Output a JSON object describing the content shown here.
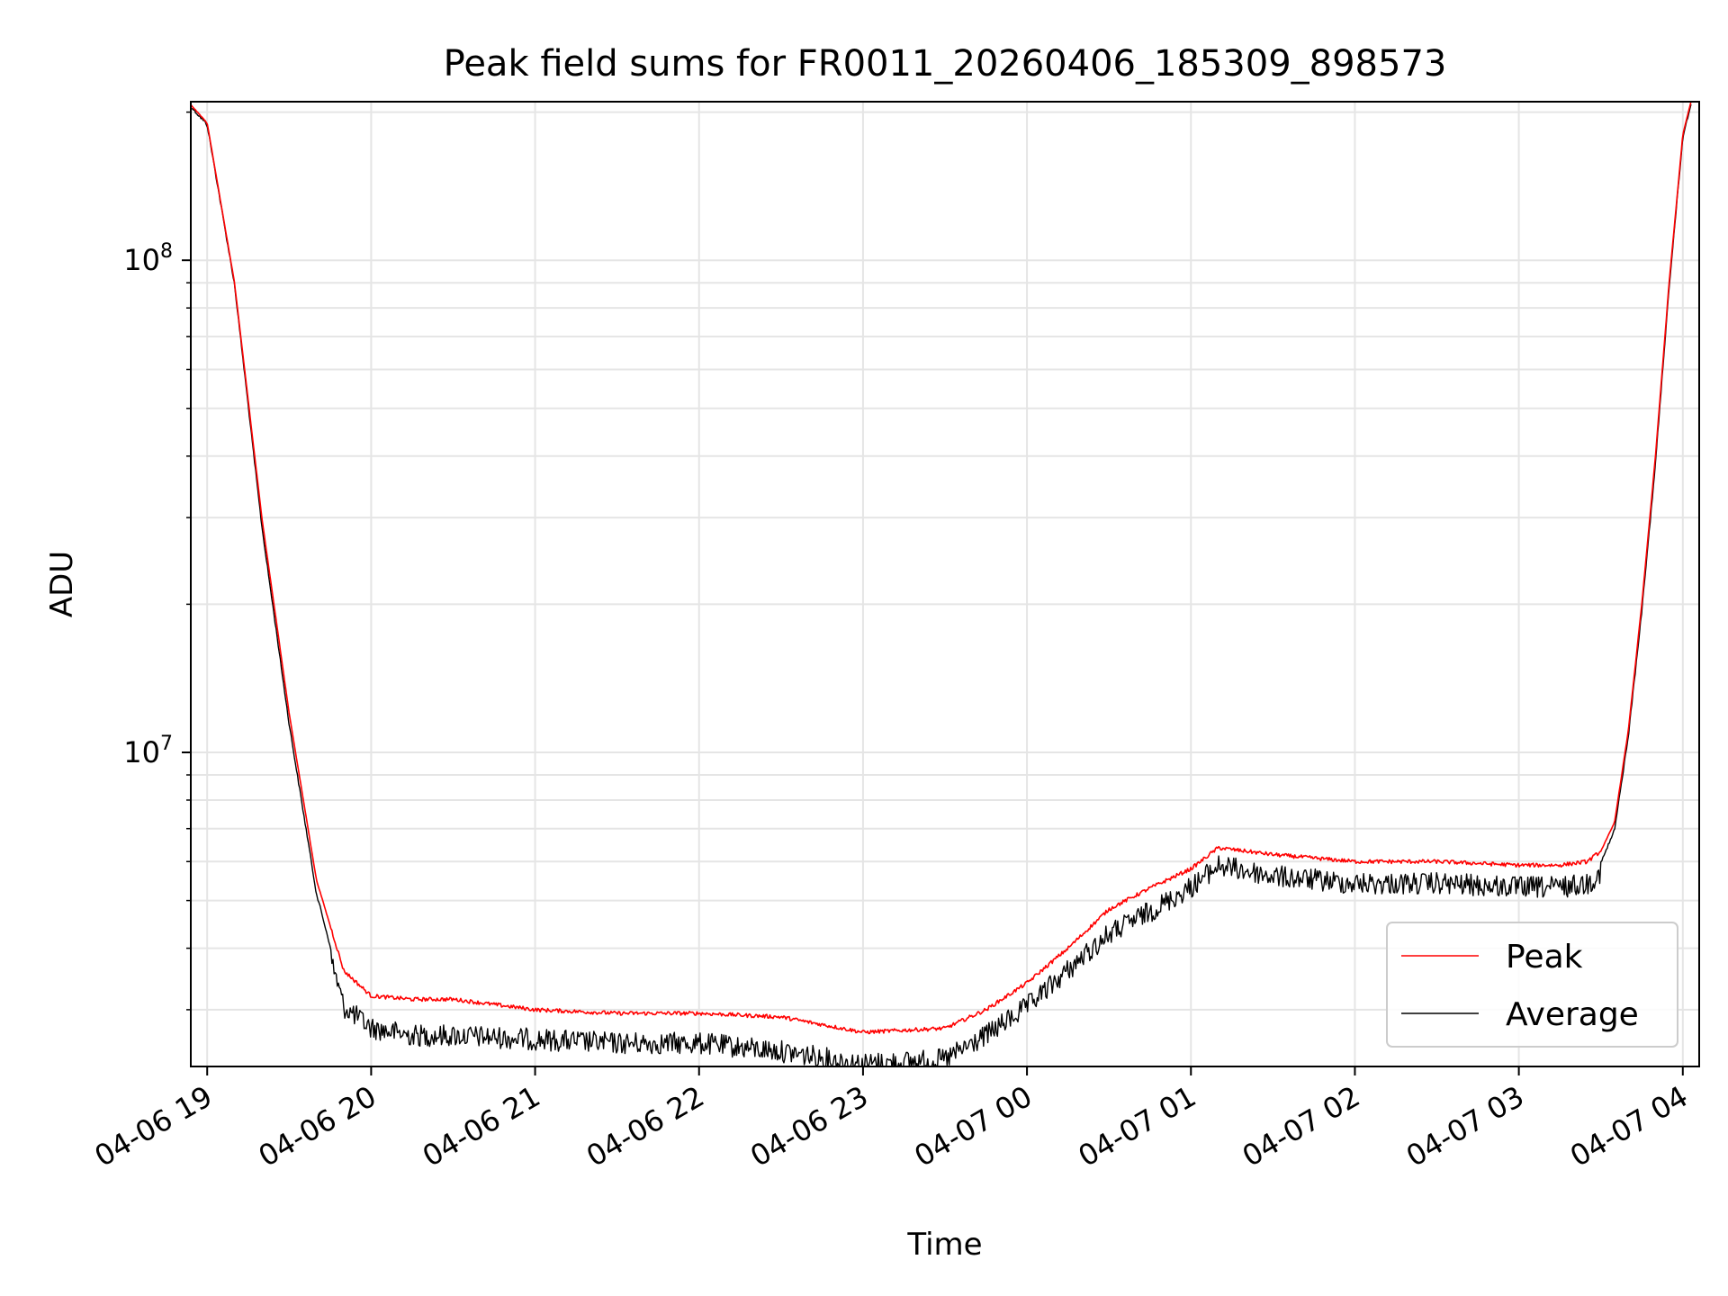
{
  "chart_data": {
    "type": "line",
    "title": "Peak field sums for FR0011_20260406_185309_898573",
    "xlabel": "Time",
    "ylabel": "ADU",
    "yscale": "log",
    "ylim": [
      2300000,
      210000000
    ],
    "xlim": [
      "2026-04-06 18:54",
      "2026-04-07 04:06"
    ],
    "grid": true,
    "legend": "lower right",
    "x_tick_labels": [
      "04-06 19",
      "04-06 20",
      "04-06 21",
      "04-06 22",
      "04-06 23",
      "04-07 00",
      "04-07 01",
      "04-07 02",
      "04-07 03",
      "04-07 04"
    ],
    "y_tick_labels": [
      {
        "value": 10000000,
        "base": "10",
        "exp": "7"
      },
      {
        "value": 100000000,
        "base": "10",
        "exp": "8"
      }
    ],
    "x": [
      "2026-04-06 18:53",
      "2026-04-06 19:00",
      "2026-04-06 19:10",
      "2026-04-06 19:20",
      "2026-04-06 19:30",
      "2026-04-06 19:40",
      "2026-04-06 19:50",
      "2026-04-06 20:00",
      "2026-04-06 20:15",
      "2026-04-06 20:30",
      "2026-04-06 21:00",
      "2026-04-06 21:30",
      "2026-04-06 22:00",
      "2026-04-06 22:30",
      "2026-04-06 23:00",
      "2026-04-06 23:30",
      "2026-04-06 23:45",
      "2026-04-07 00:00",
      "2026-04-07 00:15",
      "2026-04-07 00:30",
      "2026-04-07 00:45",
      "2026-04-07 01:00",
      "2026-04-07 01:10",
      "2026-04-07 01:30",
      "2026-04-07 02:00",
      "2026-04-07 02:30",
      "2026-04-07 03:00",
      "2026-04-07 03:15",
      "2026-04-07 03:25",
      "2026-04-07 03:30",
      "2026-04-07 03:35",
      "2026-04-07 03:40",
      "2026-04-07 03:45",
      "2026-04-07 03:50",
      "2026-04-07 03:55",
      "2026-04-07 04:00",
      "2026-04-07 04:03"
    ],
    "series": [
      {
        "name": "Peak",
        "color": "#ff0000",
        "values": [
          210000000,
          190000000,
          90000000,
          30000000,
          12000000,
          5500000,
          3600000,
          3200000,
          3150000,
          3150000,
          3000000,
          2950000,
          2950000,
          2900000,
          2700000,
          2750000,
          3000000,
          3400000,
          4000000,
          4800000,
          5300000,
          5800000,
          6400000,
          6200000,
          6000000,
          6000000,
          5900000,
          5900000,
          6000000,
          6300000,
          7200000,
          11000000,
          20000000,
          40000000,
          90000000,
          180000000,
          210000000
        ]
      },
      {
        "name": "Average",
        "color": "#000000",
        "values": [
          210000000,
          190000000,
          90000000,
          29000000,
          11500000,
          5200000,
          3200000,
          2900000,
          2800000,
          2800000,
          2750000,
          2700000,
          2700000,
          2600000,
          2450000,
          2500000,
          2800000,
          3200000,
          3800000,
          4500000,
          5000000,
          5600000,
          6200000,
          5900000,
          5700000,
          5700000,
          5600000,
          5600000,
          5700000,
          6000000,
          7000000,
          10800000,
          19500000,
          39000000,
          89000000,
          179000000,
          210000000
        ]
      }
    ]
  }
}
